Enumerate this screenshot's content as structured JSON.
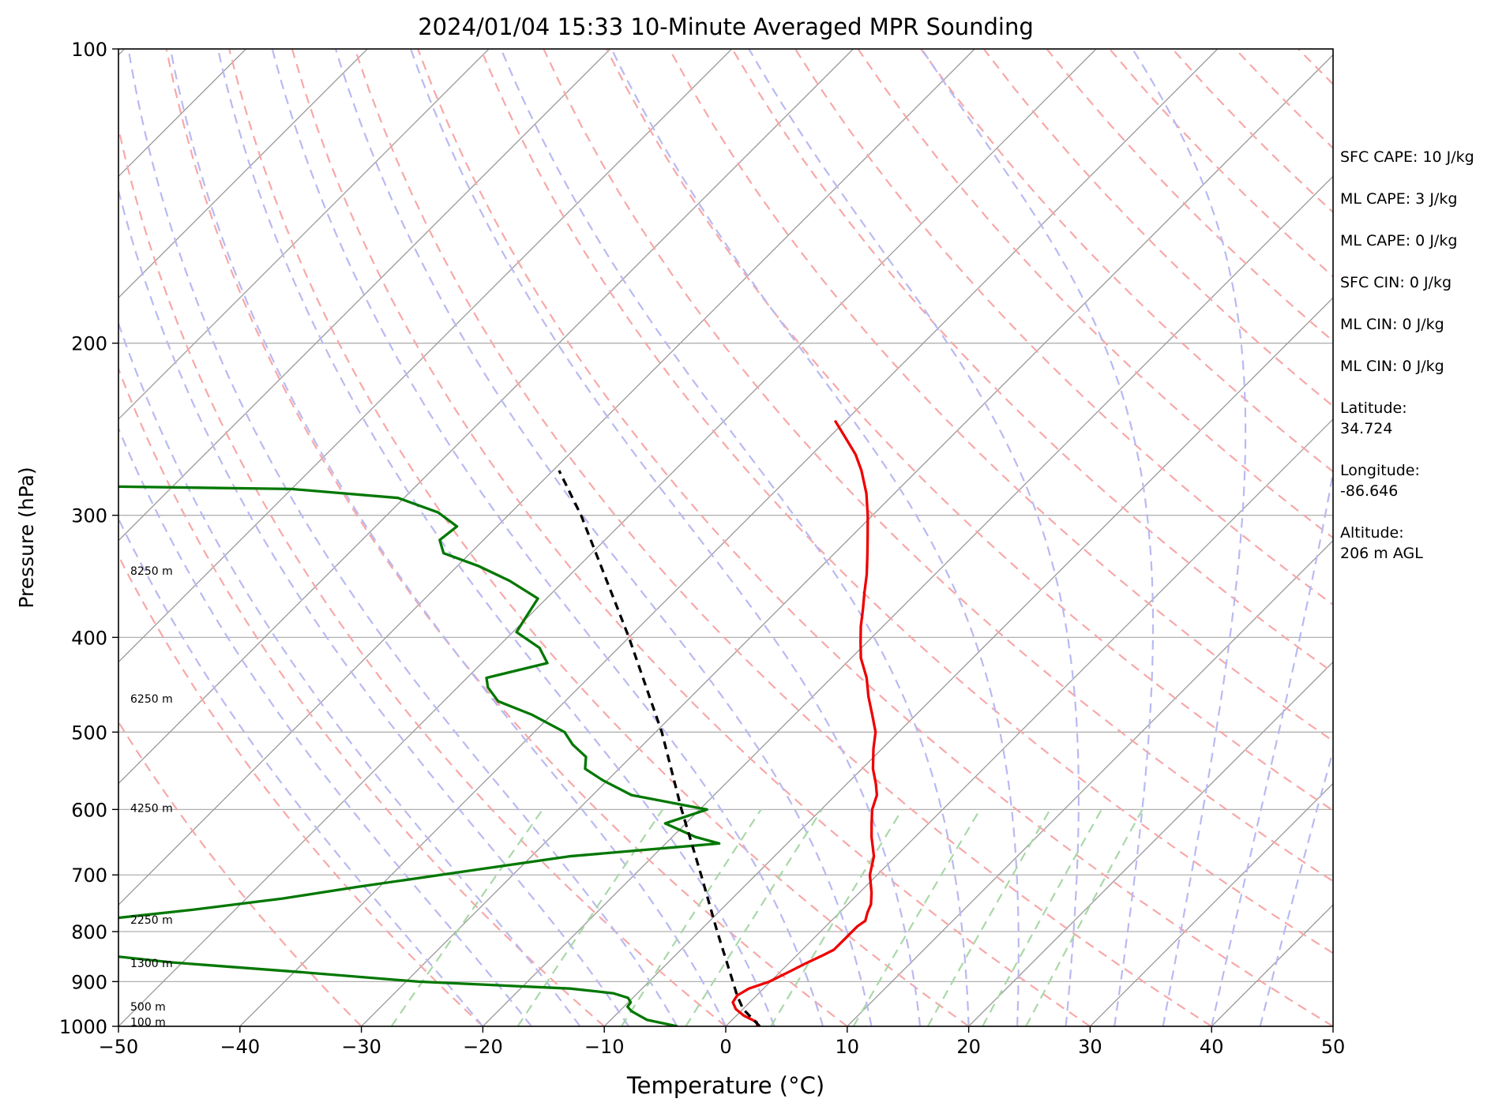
{
  "chart_data": {
    "type": "line",
    "title": "2024/01/04 15:33 10-Minute Averaged MPR Sounding",
    "xlabel": "Temperature (°C)",
    "ylabel": "Pressure (hPa)",
    "xlim": [
      -50,
      50
    ],
    "ylim": [
      1000,
      100
    ],
    "y_scale": "log",
    "skew_t": true,
    "grid": true,
    "x_ticks": [
      "−50",
      "−40",
      "−30",
      "−20",
      "−10",
      "0",
      "10",
      "20",
      "30",
      "40",
      "50"
    ],
    "y_ticks": [
      "100",
      "200",
      "300",
      "400",
      "500",
      "600",
      "700",
      "800",
      "900",
      "1000"
    ],
    "height_labels": [
      {
        "pressure": 990,
        "label": "100 m"
      },
      {
        "pressure": 955,
        "label": "500 m"
      },
      {
        "pressure": 862,
        "label": "1300 m"
      },
      {
        "pressure": 778,
        "label": "2250 m"
      },
      {
        "pressure": 598,
        "label": "4250 m"
      },
      {
        "pressure": 462,
        "label": "6250 m"
      },
      {
        "pressure": 342,
        "label": "8250 m"
      }
    ],
    "series": [
      {
        "color": "#ee0000",
        "points": [
          [
            1000,
            2.6
          ],
          [
            990,
            2.2
          ],
          [
            975,
            0.6
          ],
          [
            960,
            -0.6
          ],
          [
            945,
            -1.4
          ],
          [
            930,
            -1.6
          ],
          [
            915,
            -1.2
          ],
          [
            900,
            -0.1
          ],
          [
            880,
            0.7
          ],
          [
            862,
            1.4
          ],
          [
            845,
            2.2
          ],
          [
            835,
            2.6
          ],
          [
            820,
            2.6
          ],
          [
            805,
            2.6
          ],
          [
            790,
            2.6
          ],
          [
            780,
            2.8
          ],
          [
            765,
            2.3
          ],
          [
            750,
            1.9
          ],
          [
            730,
            1.0
          ],
          [
            700,
            -0.6
          ],
          [
            670,
            -1.8
          ],
          [
            640,
            -3.6
          ],
          [
            620,
            -4.7
          ],
          [
            600,
            -5.8
          ],
          [
            580,
            -6.6
          ],
          [
            565,
            -7.6
          ],
          [
            545,
            -9.1
          ],
          [
            520,
            -10.7
          ],
          [
            500,
            -11.9
          ],
          [
            480,
            -13.6
          ],
          [
            460,
            -15.4
          ],
          [
            440,
            -17.1
          ],
          [
            420,
            -19.2
          ],
          [
            405,
            -20.5
          ],
          [
            390,
            -21.8
          ],
          [
            375,
            -23.0
          ],
          [
            360,
            -24.3
          ],
          [
            345,
            -25.6
          ],
          [
            330,
            -27.1
          ],
          [
            315,
            -28.7
          ],
          [
            300,
            -30.4
          ],
          [
            285,
            -32.3
          ],
          [
            270,
            -34.6
          ],
          [
            260,
            -36.4
          ],
          [
            250,
            -38.6
          ],
          [
            240,
            -40.9
          ]
        ]
      },
      {
        "color": "#007700",
        "points": [
          [
            1000,
            -4.0
          ],
          [
            995,
            -5.0
          ],
          [
            985,
            -7.0
          ],
          [
            975,
            -8.0
          ],
          [
            965,
            -9.0
          ],
          [
            955,
            -9.7
          ],
          [
            945,
            -9.8
          ],
          [
            935,
            -10.4
          ],
          [
            925,
            -12.0
          ],
          [
            915,
            -15.9
          ],
          [
            900,
            -29.0
          ],
          [
            880,
            -39.5
          ],
          [
            860,
            -51.0
          ],
          [
            845,
            -57.3
          ],
          [
            835,
            -60.0
          ],
          [
            820,
            -60.1
          ],
          [
            805,
            -59.8
          ],
          [
            795,
            -59.2
          ],
          [
            785,
            -60.2
          ],
          [
            780,
            -61.0
          ],
          [
            760,
            -53.5
          ],
          [
            740,
            -47.0
          ],
          [
            720,
            -41.8
          ],
          [
            690,
            -33.0
          ],
          [
            670,
            -26.9
          ],
          [
            650,
            -15.6
          ],
          [
            640,
            -18.1
          ],
          [
            620,
            -21.7
          ],
          [
            600,
            -19.4
          ],
          [
            580,
            -26.8
          ],
          [
            560,
            -30.4
          ],
          [
            545,
            -32.8
          ],
          [
            530,
            -33.7
          ],
          [
            515,
            -35.8
          ],
          [
            500,
            -37.5
          ],
          [
            480,
            -41.6
          ],
          [
            465,
            -45.5
          ],
          [
            450,
            -47.5
          ],
          [
            440,
            -48.4
          ],
          [
            425,
            -44.6
          ],
          [
            410,
            -46.5
          ],
          [
            395,
            -49.7
          ],
          [
            380,
            -50.2
          ],
          [
            365,
            -50.7
          ],
          [
            350,
            -54.5
          ],
          [
            338,
            -58.3
          ],
          [
            328,
            -62.2
          ],
          [
            318,
            -63.6
          ],
          [
            308,
            -63.3
          ],
          [
            298,
            -66.0
          ],
          [
            288,
            -70.5
          ],
          [
            282,
            -80.0
          ],
          [
            280,
            -98.0
          ]
        ]
      },
      {
        "color": "#000000",
        "dashed": true,
        "points": [
          [
            1000,
            2.8
          ],
          [
            960,
            0.0
          ],
          [
            930,
            -1.6
          ],
          [
            900,
            -3.1
          ],
          [
            800,
            -8.5
          ],
          [
            700,
            -14.5
          ],
          [
            600,
            -21.5
          ],
          [
            500,
            -29.5
          ],
          [
            400,
            -40.0
          ],
          [
            350,
            -46.5
          ],
          [
            300,
            -54.0
          ],
          [
            270,
            -59.5
          ]
        ]
      }
    ]
  },
  "stats": {
    "sfc_cape": "SFC CAPE: 10 J/kg",
    "ml_cape_1": "ML CAPE: 3 J/kg",
    "ml_cape_2": "ML CAPE: 0 J/kg",
    "sfc_cin": "SFC CIN: 0 J/kg",
    "ml_cin_1": "ML CIN: 0 J/kg",
    "ml_cin_2": "ML CIN: 0 J/kg",
    "latitude_label": "Latitude:",
    "latitude_value": "34.724",
    "longitude_label": "Longitude:",
    "longitude_value": "-86.646",
    "altitude_label": "Altitude:",
    "altitude_value": "206 m AGL"
  }
}
